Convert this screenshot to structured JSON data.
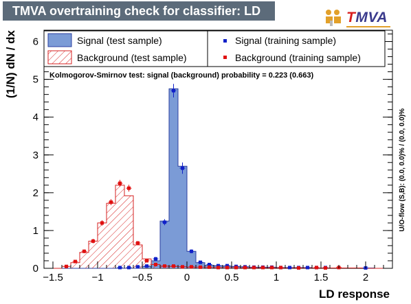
{
  "header": {
    "title": "TMVA overtraining check for classifier: LD",
    "logo_text": "TMVA",
    "logo_accent_letter": "T"
  },
  "colors": {
    "signal_fill": "#7b9bd6",
    "signal_line": "#2b3fa0",
    "background_line": "#d62020",
    "signal_points": "#1020c8",
    "background_points": "#e01010",
    "title_bar": "#5c6b7a"
  },
  "chart_data": {
    "type": "bar",
    "xlabel": "LD response",
    "ylabel": "(1/N) dN  /  dx",
    "xlim": [
      -1.6,
      2.3
    ],
    "ylim": [
      0,
      6.3
    ],
    "xticks": [
      -1.5,
      -1,
      -0.5,
      0,
      0.5,
      1,
      1.5,
      2
    ],
    "xtick_labels": [
      "−1.5",
      "−1",
      "−0.5",
      "0",
      "0.5",
      "1",
      "1.5",
      "2"
    ],
    "yticks": [
      0,
      1,
      2,
      3,
      4,
      5,
      6
    ],
    "ytick_labels": [
      "0",
      "1",
      "2",
      "3",
      "4",
      "5",
      "6"
    ],
    "bin_edges": [
      -1.6,
      -1.5,
      -1.4,
      -1.3,
      -1.2,
      -1.1,
      -1.0,
      -0.9,
      -0.8,
      -0.7,
      -0.6,
      -0.5,
      -0.4,
      -0.3,
      -0.2,
      -0.1,
      0.0,
      0.1,
      0.2,
      0.3,
      0.4,
      0.5,
      0.6,
      0.7,
      0.8,
      0.9,
      1.0,
      1.1,
      1.2,
      1.3,
      1.4,
      1.5,
      1.6,
      1.7,
      1.8,
      1.9,
      2.0,
      2.1,
      2.2,
      2.3
    ],
    "series": [
      {
        "name": "Signal (test sample)",
        "kind": "filled-hist",
        "values": [
          0,
          0,
          0,
          0,
          0,
          0,
          0,
          0,
          0,
          0,
          0,
          0.05,
          0.2,
          1.25,
          4.75,
          2.7,
          0.45,
          0.15,
          0.08,
          0.07,
          0.06,
          0.05,
          0.04,
          0.03,
          0.03,
          0.03,
          0.02,
          0.02,
          0.02,
          0.02,
          0.01,
          0.01,
          0.01,
          0.01,
          0.01,
          0.01,
          0.01,
          0,
          0
        ]
      },
      {
        "name": "Background (test sample)",
        "kind": "hatched-hist",
        "values": [
          0,
          0,
          0.05,
          0.15,
          0.42,
          0.72,
          1.2,
          1.72,
          2.2,
          1.92,
          0.62,
          0.25,
          0.1,
          0.06,
          0.05,
          0.04,
          0.03,
          0.03,
          0.02,
          0.02,
          0.02,
          0.02,
          0.01,
          0.01,
          0.01,
          0.01,
          0.01,
          0.01,
          0.01,
          0.01,
          0.01,
          0.01,
          0.01,
          0.01,
          0.01,
          0.01,
          0,
          0,
          0
        ]
      },
      {
        "name": "Signal (training sample)",
        "kind": "points",
        "x": [
          -0.75,
          -0.65,
          -0.55,
          -0.45,
          -0.35,
          -0.25,
          -0.15,
          -0.05,
          0.05,
          0.15,
          0.25,
          0.35,
          0.45,
          0.55,
          0.65,
          0.75,
          0.85,
          0.95,
          1.05,
          1.15,
          1.25,
          1.35,
          1.45,
          1.55,
          2.0
        ],
        "y": [
          0.02,
          0.02,
          0.04,
          0.06,
          0.25,
          1.22,
          4.7,
          2.65,
          0.45,
          0.16,
          0.1,
          0.07,
          0.07,
          0.05,
          0.04,
          0.03,
          0.03,
          0.03,
          0.02,
          0.02,
          0.02,
          0.02,
          0.02,
          0.02,
          0.01
        ],
        "err": [
          0.01,
          0.01,
          0.02,
          0.03,
          0.05,
          0.08,
          0.18,
          0.15,
          0.05,
          0.03,
          0.02,
          0.02,
          0.02,
          0.01,
          0.01,
          0.01,
          0.01,
          0.01,
          0.01,
          0.01,
          0.01,
          0.01,
          0.01,
          0.01,
          0.01
        ]
      },
      {
        "name": "Background (training sample)",
        "kind": "points",
        "x": [
          -1.35,
          -1.25,
          -1.15,
          -1.05,
          -0.95,
          -0.85,
          -0.75,
          -0.65,
          -0.55,
          -0.45,
          -0.35,
          -0.25,
          -0.15,
          -0.05,
          0.05,
          0.15,
          0.25,
          0.35,
          0.45,
          0.55,
          0.65,
          0.75,
          0.85,
          0.95,
          1.05,
          1.25,
          1.45,
          1.55,
          1.7
        ],
        "y": [
          0.05,
          0.18,
          0.45,
          0.72,
          1.2,
          1.75,
          2.25,
          2.12,
          0.67,
          0.2,
          0.1,
          0.06,
          0.06,
          0.04,
          0.04,
          0.03,
          0.03,
          0.02,
          0.02,
          0.02,
          0.02,
          0.02,
          0.02,
          0.02,
          0.02,
          0.01,
          0.02,
          0.01,
          0.02
        ],
        "err": [
          0.02,
          0.03,
          0.05,
          0.06,
          0.07,
          0.08,
          0.09,
          0.09,
          0.05,
          0.03,
          0.02,
          0.02,
          0.02,
          0.01,
          0.01,
          0.01,
          0.01,
          0.01,
          0.01,
          0.01,
          0.01,
          0.01,
          0.01,
          0.01,
          0.01,
          0.01,
          0.01,
          0.01,
          0.01
        ]
      }
    ],
    "legend": {
      "placement": "top",
      "entries": [
        "Signal (test sample)",
        "Signal (training sample)",
        "Background (test sample)",
        "Background (training sample)"
      ]
    },
    "annotations": {
      "ks_test": "Kolmogorov-Smirnov test: signal (background) probability = 0.223 (0.663)",
      "overflow": "U/O-flow (S,B): (0.0, 0.0)% / (0.0, 0.0)%"
    }
  }
}
